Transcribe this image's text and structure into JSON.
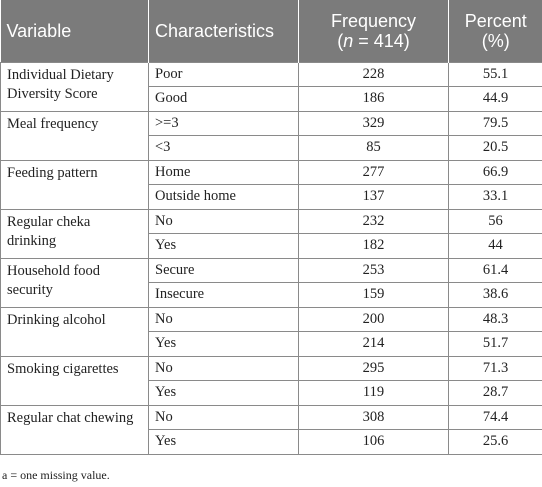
{
  "table": {
    "headers": {
      "variable": "Variable",
      "characteristics": "Characteristics",
      "frequency_line1": "Frequency",
      "frequency_n": "n",
      "frequency_rest": " = 414)",
      "frequency_open": "(",
      "percent_line1": "Percent",
      "percent_line2": "(%)"
    },
    "groups": [
      {
        "variable": "Individual Dietary Diversity Score",
        "rows": [
          {
            "characteristic": "Poor",
            "frequency": "228",
            "percent": "55.1"
          },
          {
            "characteristic": "Good",
            "frequency": "186",
            "percent": "44.9"
          }
        ]
      },
      {
        "variable": "Meal frequency",
        "rows": [
          {
            "characteristic": ">=3",
            "frequency": "329",
            "percent": "79.5"
          },
          {
            "characteristic": "<3",
            "frequency": "85",
            "percent": "20.5"
          }
        ]
      },
      {
        "variable": "Feeding pattern",
        "rows": [
          {
            "characteristic": "Home",
            "frequency": "277",
            "percent": "66.9"
          },
          {
            "characteristic": "Outside home",
            "frequency": "137",
            "percent": "33.1"
          }
        ]
      },
      {
        "variable": "Regular cheka drinking",
        "rows": [
          {
            "characteristic": "No",
            "frequency": "232",
            "percent": "56"
          },
          {
            "characteristic": "Yes",
            "frequency": "182",
            "percent": "44"
          }
        ]
      },
      {
        "variable": "Household food security",
        "rows": [
          {
            "characteristic": "Secure",
            "frequency": "253",
            "percent": "61.4"
          },
          {
            "characteristic": "Insecure",
            "frequency": "159",
            "percent": "38.6"
          }
        ]
      },
      {
        "variable": "Drinking alcohol",
        "rows": [
          {
            "characteristic": "No",
            "frequency": "200",
            "percent": "48.3"
          },
          {
            "characteristic": "Yes",
            "frequency": "214",
            "percent": "51.7"
          }
        ]
      },
      {
        "variable": "Smoking cigarettes",
        "rows": [
          {
            "characteristic": "No",
            "frequency": "295",
            "percent": "71.3"
          },
          {
            "characteristic": "Yes",
            "frequency": "119",
            "percent": "28.7"
          }
        ]
      },
      {
        "variable": "Regular chat chewing",
        "rows": [
          {
            "characteristic": "No",
            "frequency": "308",
            "percent": "74.4"
          },
          {
            "characteristic": "Yes",
            "frequency": "106",
            "percent": "25.6"
          }
        ]
      }
    ],
    "colors": {
      "header_bg": "#7b7b7b",
      "header_text": "#ffffff",
      "border": "#8a8a8a"
    }
  },
  "footnote": "a = one missing value."
}
